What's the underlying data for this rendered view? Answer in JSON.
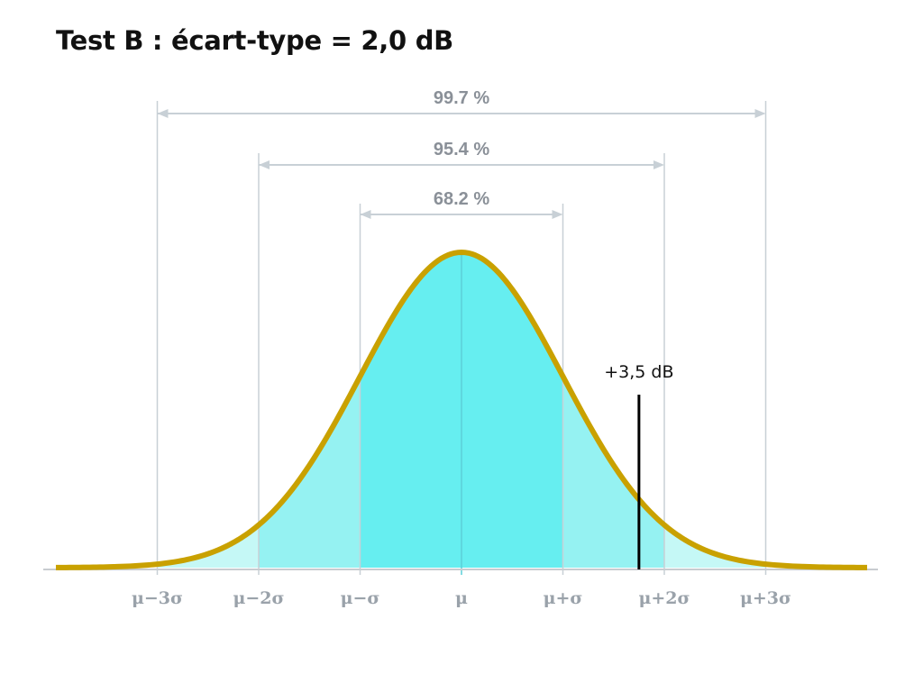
{
  "title": "Test B : écart-type = 2,0 dB",
  "chart_data": {
    "type": "area",
    "distribution": "normal",
    "mean": 0,
    "sigma": 1,
    "xlim": [
      -4.0,
      4.0
    ],
    "x_ticks": [
      {
        "value": -3,
        "label": "μ−3σ"
      },
      {
        "value": -2,
        "label": "μ−2σ"
      },
      {
        "value": -1,
        "label": "μ−σ"
      },
      {
        "value": 0,
        "label": "μ"
      },
      {
        "value": 1,
        "label": "μ+σ"
      },
      {
        "value": 2,
        "label": "μ+2σ"
      },
      {
        "value": 3,
        "label": "μ+3σ"
      }
    ],
    "bands": [
      {
        "from": -3,
        "to": 3,
        "label": "99.7 %"
      },
      {
        "from": -2,
        "to": 2,
        "label": "95.4 %"
      },
      {
        "from": -1,
        "to": 1,
        "label": "68.2 %"
      }
    ],
    "marker": {
      "value": 1.75,
      "label": "+3,5 dB"
    },
    "colors": {
      "curve": "#c9a100",
      "fill_inner": "#66eef0",
      "fill_mid": "#95f2f2",
      "fill_outer": "#c5f8f6",
      "gridline": "#c8d0d6",
      "axis": "#c8ccd0",
      "band_arrow": "#c8d0d6",
      "marker": "#000000"
    }
  }
}
